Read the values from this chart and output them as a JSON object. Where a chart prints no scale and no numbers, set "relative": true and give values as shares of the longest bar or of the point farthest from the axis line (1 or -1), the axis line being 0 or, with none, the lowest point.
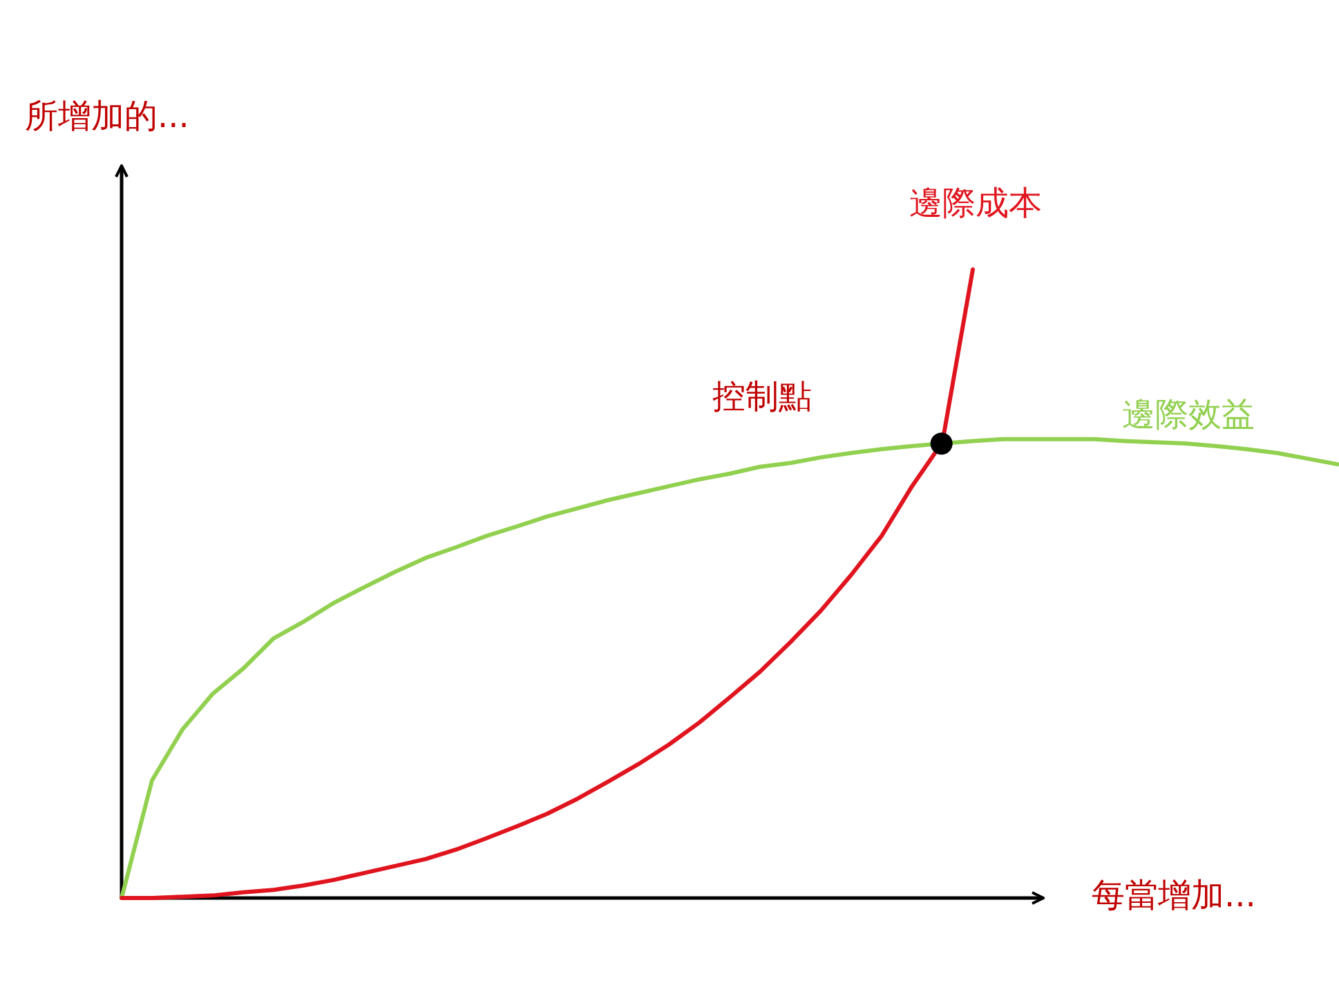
{
  "chart_data": {
    "type": "line",
    "relative": true,
    "xlabel": "每當增加...",
    "ylabel": "所增加的...",
    "categories": [
      null,
      null,
      null,
      null,
      null,
      null,
      null,
      null,
      null,
      null,
      null,
      null,
      null,
      null,
      null,
      null,
      null,
      null,
      null,
      null,
      null,
      null,
      null,
      null,
      null,
      null,
      null,
      null,
      null,
      null,
      null,
      null,
      null,
      null,
      null,
      null,
      null,
      null,
      null,
      null,
      null
    ],
    "series": [
      {
        "name": "邊際效益",
        "color": "#92d050",
        "values": [
          0,
          0.187,
          0.268,
          0.325,
          0.365,
          0.413,
          0.44,
          0.47,
          0.495,
          0.519,
          0.541,
          0.558,
          0.576,
          0.591,
          0.607,
          0.62,
          0.633,
          0.644,
          0.655,
          0.666,
          0.675,
          0.686,
          0.692,
          0.701,
          0.708,
          0.714,
          0.719,
          0.723,
          0.727,
          0.73,
          0.73,
          0.73,
          0.73,
          0.727,
          0.725,
          0.723,
          0.719,
          0.714,
          0.708,
          0.699,
          0.69
        ]
      },
      {
        "name": "邊際成本",
        "color": "#e0141e",
        "values": [
          0,
          0,
          0.002,
          0.004,
          0.009,
          0.013,
          0.02,
          0.029,
          0.04,
          0.051,
          0.062,
          0.077,
          0.095,
          0.114,
          0.134,
          0.158,
          0.185,
          0.213,
          0.244,
          0.279,
          0.319,
          0.36,
          0.407,
          0.457,
          0.514,
          0.576,
          0.655,
          0.725,
          1.0,
          null,
          null,
          null,
          null,
          null,
          null,
          null,
          null,
          null,
          null,
          null,
          null
        ]
      }
    ],
    "annotations": [
      "控制點"
    ]
  }
}
